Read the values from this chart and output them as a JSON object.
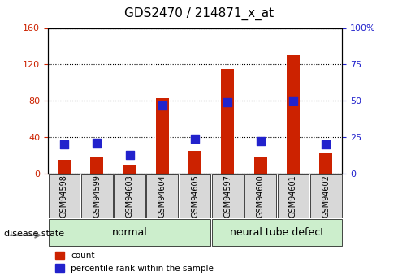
{
  "title": "GDS2470 / 214871_x_at",
  "samples": [
    "GSM94598",
    "GSM94599",
    "GSM94603",
    "GSM94604",
    "GSM94605",
    "GSM94597",
    "GSM94600",
    "GSM94601",
    "GSM94602"
  ],
  "counts": [
    15,
    18,
    10,
    83,
    25,
    115,
    18,
    130,
    22
  ],
  "percentiles": [
    20,
    21,
    13,
    47,
    24,
    49,
    22,
    50,
    20
  ],
  "left_ylim": [
    0,
    160
  ],
  "right_ylim": [
    0,
    100
  ],
  "left_yticks": [
    0,
    40,
    80,
    120,
    160
  ],
  "right_yticks": [
    0,
    25,
    50,
    75,
    100
  ],
  "bar_color": "#cc2200",
  "dot_color": "#2222cc",
  "normal_group": [
    "GSM94598",
    "GSM94599",
    "GSM94603",
    "GSM94604",
    "GSM94605"
  ],
  "defect_group": [
    "GSM94597",
    "GSM94600",
    "GSM94601",
    "GSM94602"
  ],
  "normal_label": "normal",
  "defect_label": "neural tube defect",
  "disease_label": "disease state",
  "legend_count": "count",
  "legend_percentile": "percentile rank within the sample",
  "normal_color": "#aaddaa",
  "defect_color": "#88cc88",
  "group_box_color": "#cceecc",
  "bar_width": 0.4,
  "dot_size": 60,
  "grid_color": "#000000",
  "bg_color": "#ffffff",
  "plot_bg": "#f0f0f0"
}
